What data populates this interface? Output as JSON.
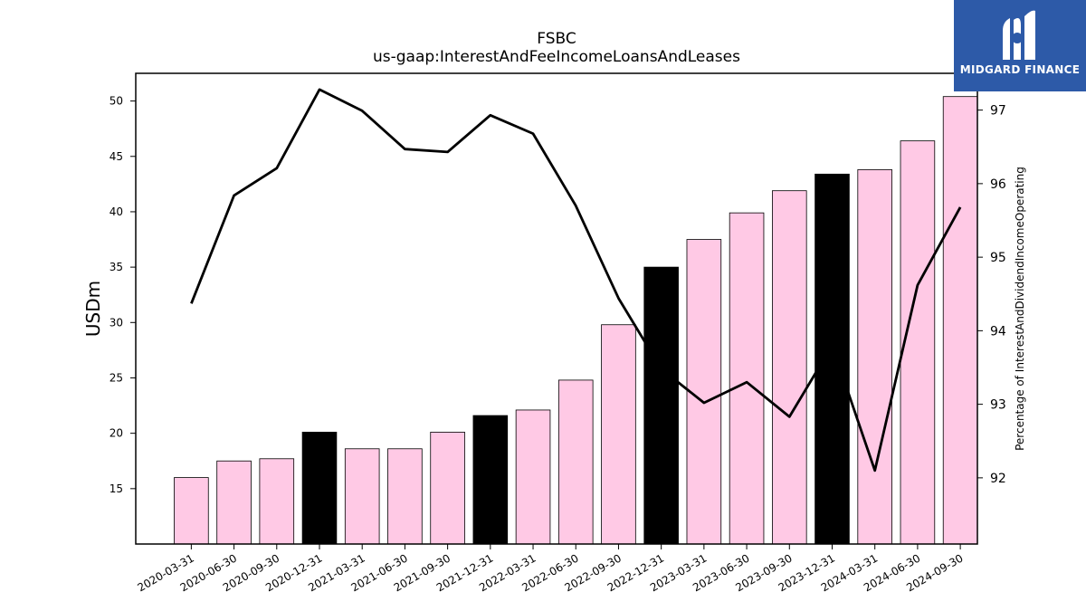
{
  "logo": {
    "text": "MIDGARD FINANCE"
  },
  "colors": {
    "bar_default": "#ffc9e5",
    "bar_highlight": "#000000",
    "line": "#000000",
    "logo_bg": "#2d5aa8"
  },
  "chart_data": {
    "type": "bar",
    "title": "FSBC",
    "subtitle": "us-gaap:InterestAndFeeIncomeLoansAndLeases",
    "ylabel": "USDm",
    "y2label": "Percentage of InterestAndDividendIncomeOperating",
    "categories": [
      "2020-03-31",
      "2020-06-30",
      "2020-09-30",
      "2020-12-31",
      "2021-03-31",
      "2021-06-30",
      "2021-09-30",
      "2021-12-31",
      "2022-03-31",
      "2022-06-30",
      "2022-09-30",
      "2022-12-31",
      "2023-03-31",
      "2023-06-30",
      "2023-09-30",
      "2023-12-31",
      "2024-03-31",
      "2024-06-30",
      "2024-09-30"
    ],
    "ylim": [
      10,
      52.5
    ],
    "y2lim": [
      91.1,
      97.5
    ],
    "yticks": [
      15,
      20,
      25,
      30,
      35,
      40,
      45,
      50
    ],
    "y2ticks": [
      92,
      93,
      94,
      95,
      96,
      97
    ],
    "series": [
      {
        "type": "bar",
        "axis": "left",
        "values": [
          16.0,
          17.5,
          17.7,
          20.1,
          18.6,
          18.6,
          20.1,
          21.6,
          22.1,
          24.8,
          29.8,
          35.0,
          37.5,
          39.9,
          41.9,
          43.4,
          43.8,
          46.4,
          50.4
        ],
        "highlight": [
          false,
          false,
          false,
          true,
          false,
          false,
          false,
          true,
          false,
          false,
          false,
          true,
          false,
          false,
          false,
          true,
          false,
          false,
          false
        ]
      },
      {
        "type": "line",
        "axis": "right",
        "values": [
          94.37,
          95.84,
          96.21,
          97.28,
          96.99,
          96.47,
          96.43,
          96.93,
          96.68,
          95.7,
          94.44,
          93.48,
          93.02,
          93.3,
          92.83,
          93.8,
          92.1,
          94.62,
          95.68
        ]
      }
    ],
    "grid": false,
    "legend": "none"
  }
}
